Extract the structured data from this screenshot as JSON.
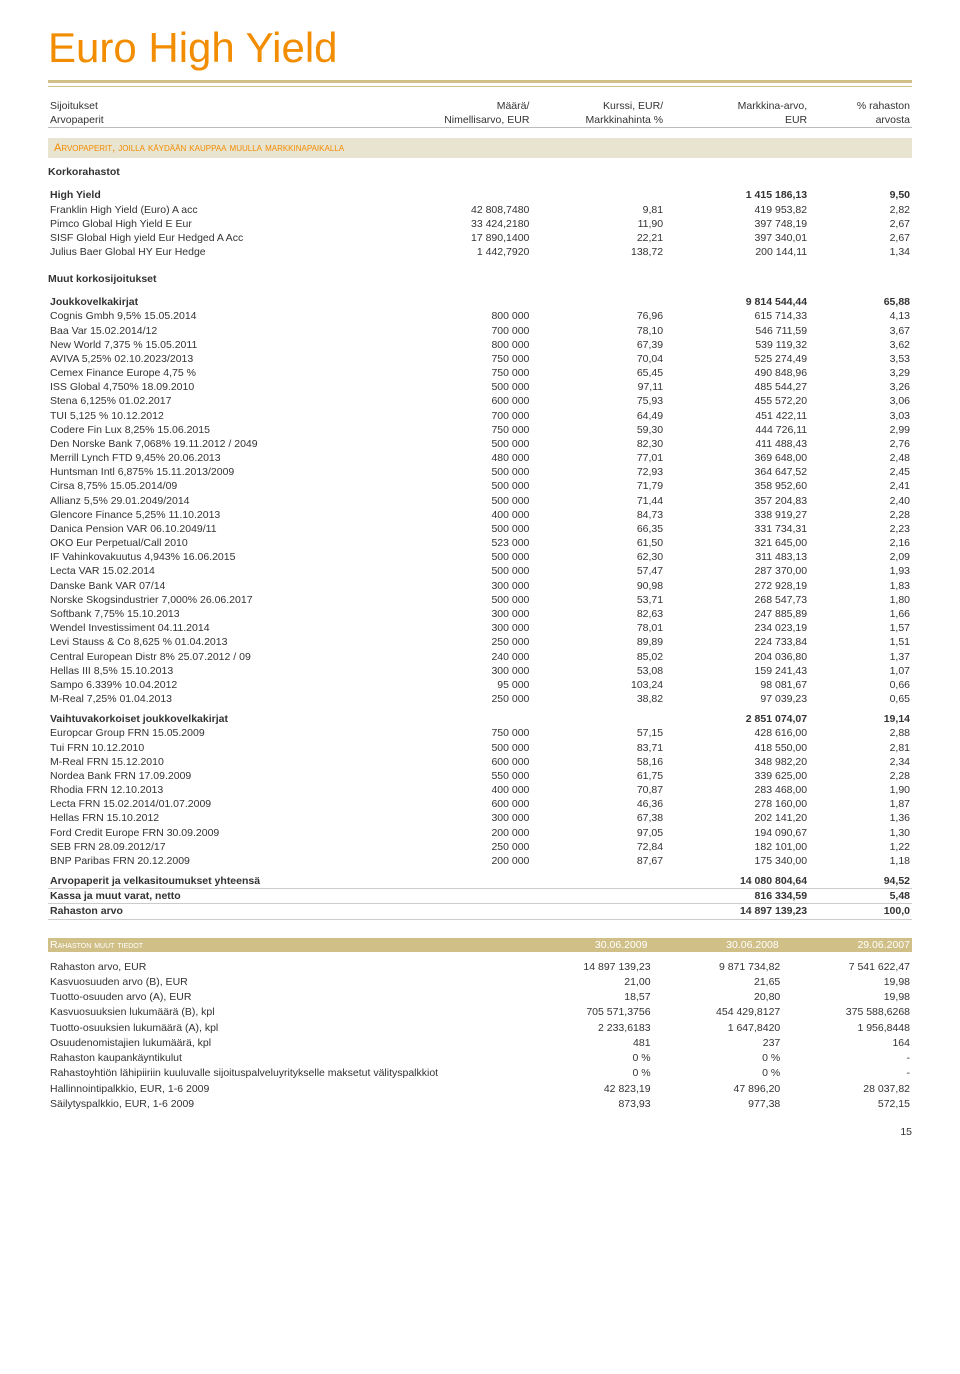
{
  "page_title": "Euro High Yield",
  "header": {
    "col1a": "Sijoitukset",
    "col1b": "Arvopaperit",
    "col2a": "Määrä/",
    "col2b": "Nimellisarvo, EUR",
    "col3a": "Kurssi, EUR/",
    "col3b": "Markkinahinta %",
    "col4a": "Markkina-arvo,",
    "col4b": "EUR",
    "col5a": "% rahaston",
    "col5b": "arvosta"
  },
  "section_bar": "Arvopaperit, joilla käydään kauppaa muulla markkinapaikalla",
  "sections": [
    {
      "heading": "Korkorahastot",
      "groups": [
        {
          "title": "High Yield",
          "mv": "1 415 186,13",
          "pct": "9,50",
          "rows": [
            {
              "n": "Franklin High Yield (Euro) A acc",
              "a": "42 808,7480",
              "k": "9,81",
              "m": "419 953,82",
              "p": "2,82"
            },
            {
              "n": "Pimco Global High Yield E Eur",
              "a": "33 424,2180",
              "k": "11,90",
              "m": "397 748,19",
              "p": "2,67"
            },
            {
              "n": "SISF Global High yield Eur Hedged A Acc",
              "a": "17 890,1400",
              "k": "22,21",
              "m": "397 340,01",
              "p": "2,67"
            },
            {
              "n": "Julius Baer Global HY Eur Hedge",
              "a": "1 442,7920",
              "k": "138,72",
              "m": "200 144,11",
              "p": "1,34"
            }
          ]
        }
      ]
    },
    {
      "heading": "Muut korkosijoitukset",
      "groups": [
        {
          "title": "Joukkovelkakirjat",
          "mv": "9 814 544,44",
          "pct": "65,88",
          "rows": [
            {
              "n": "Cognis Gmbh 9,5% 15.05.2014",
              "a": "800 000",
              "k": "76,96",
              "m": "615 714,33",
              "p": "4,13"
            },
            {
              "n": "Baa Var 15.02.2014/12",
              "a": "700 000",
              "k": "78,10",
              "m": "546 711,59",
              "p": "3,67"
            },
            {
              "n": "New World 7,375 % 15.05.2011",
              "a": "800 000",
              "k": "67,39",
              "m": "539 119,32",
              "p": "3,62"
            },
            {
              "n": "AVIVA 5,25% 02.10.2023/2013",
              "a": "750 000",
              "k": "70,04",
              "m": "525 274,49",
              "p": "3,53"
            },
            {
              "n": "Cemex Finance Europe 4,75 %",
              "a": "750 000",
              "k": "65,45",
              "m": "490 848,96",
              "p": "3,29"
            },
            {
              "n": "ISS Global 4,750% 18.09.2010",
              "a": "500 000",
              "k": "97,11",
              "m": "485 544,27",
              "p": "3,26"
            },
            {
              "n": "Stena 6,125% 01.02.2017",
              "a": "600 000",
              "k": "75,93",
              "m": "455 572,20",
              "p": "3,06"
            },
            {
              "n": "TUI 5,125 % 10.12.2012",
              "a": "700 000",
              "k": "64,49",
              "m": "451 422,11",
              "p": "3,03"
            },
            {
              "n": "Codere Fin Lux 8,25% 15.06.2015",
              "a": "750 000",
              "k": "59,30",
              "m": "444 726,11",
              "p": "2,99"
            },
            {
              "n": "Den Norske Bank 7,068% 19.11.2012 / 2049",
              "a": "500 000",
              "k": "82,30",
              "m": "411 488,43",
              "p": "2,76"
            },
            {
              "n": "Merrill Lynch FTD 9,45% 20.06.2013",
              "a": "480 000",
              "k": "77,01",
              "m": "369 648,00",
              "p": "2,48"
            },
            {
              "n": "Huntsman Intl 6,875% 15.11.2013/2009",
              "a": "500 000",
              "k": "72,93",
              "m": "364 647,52",
              "p": "2,45"
            },
            {
              "n": "Cirsa 8,75% 15.05.2014/09",
              "a": "500 000",
              "k": "71,79",
              "m": "358 952,60",
              "p": "2,41"
            },
            {
              "n": "Allianz 5,5% 29.01.2049/2014",
              "a": "500 000",
              "k": "71,44",
              "m": "357 204,83",
              "p": "2,40"
            },
            {
              "n": "Glencore Finance 5,25% 11.10.2013",
              "a": "400 000",
              "k": "84,73",
              "m": "338 919,27",
              "p": "2,28"
            },
            {
              "n": "Danica Pension VAR 06.10.2049/11",
              "a": "500 000",
              "k": "66,35",
              "m": "331 734,31",
              "p": "2,23"
            },
            {
              "n": "OKO Eur Perpetual/Call 2010",
              "a": "523 000",
              "k": "61,50",
              "m": "321 645,00",
              "p": "2,16"
            },
            {
              "n": "IF Vahinkovakuutus 4,943% 16.06.2015",
              "a": "500 000",
              "k": "62,30",
              "m": "311 483,13",
              "p": "2,09"
            },
            {
              "n": "Lecta VAR 15.02.2014",
              "a": "500 000",
              "k": "57,47",
              "m": "287 370,00",
              "p": "1,93"
            },
            {
              "n": "Danske Bank VAR 07/14",
              "a": "300 000",
              "k": "90,98",
              "m": "272 928,19",
              "p": "1,83"
            },
            {
              "n": "Norske Skogsindustrier 7,000% 26.06.2017",
              "a": "500 000",
              "k": "53,71",
              "m": "268 547,73",
              "p": "1,80"
            },
            {
              "n": "Softbank 7,75% 15.10.2013",
              "a": "300 000",
              "k": "82,63",
              "m": "247 885,89",
              "p": "1,66"
            },
            {
              "n": "Wendel Investissiment 04.11.2014",
              "a": "300 000",
              "k": "78,01",
              "m": "234 023,19",
              "p": "1,57"
            },
            {
              "n": "Levi Stauss & Co 8,625 % 01.04.2013",
              "a": "250 000",
              "k": "89,89",
              "m": "224 733,84",
              "p": "1,51"
            },
            {
              "n": "Central European Distr 8% 25.07.2012 / 09",
              "a": "240 000",
              "k": "85,02",
              "m": "204 036,80",
              "p": "1,37"
            },
            {
              "n": "Hellas III 8,5% 15.10.2013",
              "a": "300 000",
              "k": "53,08",
              "m": "159 241,43",
              "p": "1,07"
            },
            {
              "n": "Sampo 6.339% 10.04.2012",
              "a": "95 000",
              "k": "103,24",
              "m": "98 081,67",
              "p": "0,66"
            },
            {
              "n": "M-Real 7,25% 01.04.2013",
              "a": "250 000",
              "k": "38,82",
              "m": "97 039,23",
              "p": "0,65"
            }
          ]
        },
        {
          "title": "Vaihtuvakorkoiset joukkovelkakirjat",
          "mv": "2 851 074,07",
          "pct": "19,14",
          "rows": [
            {
              "n": "Europcar Group FRN 15.05.2009",
              "a": "750 000",
              "k": "57,15",
              "m": "428 616,00",
              "p": "2,88"
            },
            {
              "n": "Tui FRN 10.12.2010",
              "a": "500 000",
              "k": "83,71",
              "m": "418 550,00",
              "p": "2,81"
            },
            {
              "n": "M-Real FRN 15.12.2010",
              "a": "600 000",
              "k": "58,16",
              "m": "348 982,20",
              "p": "2,34"
            },
            {
              "n": "Nordea Bank FRN 17.09.2009",
              "a": "550 000",
              "k": "61,75",
              "m": "339 625,00",
              "p": "2,28"
            },
            {
              "n": "Rhodia FRN 12.10.2013",
              "a": "400 000",
              "k": "70,87",
              "m": "283 468,00",
              "p": "1,90"
            },
            {
              "n": "Lecta FRN 15.02.2014/01.07.2009",
              "a": "600 000",
              "k": "46,36",
              "m": "278 160,00",
              "p": "1,87"
            },
            {
              "n": "Hellas FRN 15.10.2012",
              "a": "300 000",
              "k": "67,38",
              "m": "202 141,20",
              "p": "1,36"
            },
            {
              "n": "Ford Credit Europe FRN 30.09.2009",
              "a": "200 000",
              "k": "97,05",
              "m": "194 090,67",
              "p": "1,30"
            },
            {
              "n": "SEB FRN 28.09.2012/17",
              "a": "250 000",
              "k": "72,84",
              "m": "182 101,00",
              "p": "1,22"
            },
            {
              "n": "BNP Paribas FRN 20.12.2009",
              "a": "200 000",
              "k": "87,67",
              "m": "175 340,00",
              "p": "1,18"
            }
          ]
        }
      ]
    }
  ],
  "totals": [
    {
      "n": "Arvopaperit ja velkasitoumukset yhteensä",
      "m": "14 080 804,64",
      "p": "94,52"
    },
    {
      "n": "Kassa ja muut varat, netto",
      "m": "816 334,59",
      "p": "5,48"
    },
    {
      "n": "Rahaston arvo",
      "m": "14 897 139,23",
      "p": "100,0"
    }
  ],
  "info_header": {
    "label": "Rahaston muut tiedot",
    "d1": "30.06.2009",
    "d2": "30.06.2008",
    "d3": "29.06.2007"
  },
  "info_rows": [
    {
      "n": "Rahaston arvo, EUR",
      "v1": "14 897 139,23",
      "v2": "9 871 734,82",
      "v3": "7 541 622,47"
    },
    {
      "n": "Kasvuosuuden arvo (B), EUR",
      "v1": "21,00",
      "v2": "21,65",
      "v3": "19,98"
    },
    {
      "n": "Tuotto-osuuden arvo (A), EUR",
      "v1": "18,57",
      "v2": "20,80",
      "v3": "19,98"
    },
    {
      "n": "Kasvuosuuksien lukumäärä (B), kpl",
      "v1": "705 571,3756",
      "v2": "454 429,8127",
      "v3": "375 588,6268"
    },
    {
      "n": "Tuotto-osuuksien lukumäärä (A), kpl",
      "v1": "2 233,6183",
      "v2": "1 647,8420",
      "v3": "1 956,8448"
    },
    {
      "n": "Osuudenomistajien lukumäärä, kpl",
      "v1": "481",
      "v2": "237",
      "v3": "164"
    },
    {
      "n": "Rahaston kaupankäyntikulut",
      "v1": "0 %",
      "v2": "0 %",
      "v3": "-"
    },
    {
      "n": "Rahastoyhtiön lähipiiriin kuuluvalle sijoituspalveluyritykselle maksetut välityspalkkiot",
      "v1": "0 %",
      "v2": "0 %",
      "v3": "-"
    },
    {
      "n": "Hallinnointipalkkio, EUR, 1-6 2009",
      "v1": "42 823,19",
      "v2": "47 896,20",
      "v3": "28 037,82"
    },
    {
      "n": "Säilytyspalkkio, EUR, 1-6 2009",
      "v1": "873,93",
      "v2": "977,38",
      "v3": "572,15"
    }
  ],
  "page_number": "15"
}
